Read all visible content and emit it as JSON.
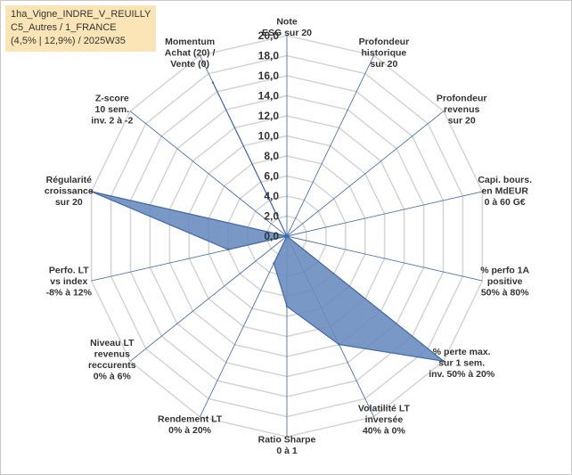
{
  "header": {
    "line1": "1ha_Vigne_INDRE_V_REUILLY",
    "line2": "C5_Autres / 1_FRANCE",
    "line3": "(4,5% | 12,9%) / 2025W35"
  },
  "chart_data": {
    "type": "radar",
    "rlim": [
      0,
      20
    ],
    "tick_labels": [
      "0,0",
      "2,0",
      "4,0",
      "6,0",
      "8,0",
      "10,0",
      "12,0",
      "14,0",
      "16,0",
      "18,0",
      "20,0"
    ],
    "grid": true,
    "colors": {
      "fill": "#6a8dbf",
      "stroke": "#3f69a8",
      "grid": "#d6d6d6",
      "spoke": "#4a72b0"
    },
    "axes": [
      {
        "label": [
          "Note",
          "ESG sur 20"
        ]
      },
      {
        "label": [
          "Profondeur",
          "historique",
          "sur 20"
        ]
      },
      {
        "label": [
          "Profondeur",
          "revenus",
          "sur 20"
        ]
      },
      {
        "label": [
          "Capi. bours.",
          "en MdEUR",
          "0 à 60 G€"
        ]
      },
      {
        "label": [
          "% perfo 1A",
          "positive",
          "50% à 80%"
        ]
      },
      {
        "label": [
          "% perte max.",
          "sur 1 sem.",
          "inv. 50% à 20%"
        ]
      },
      {
        "label": [
          "Volatilité LT",
          "inversée",
          "40% à 0%"
        ]
      },
      {
        "label": [
          "Ratio Sharpe",
          "0 à 1"
        ]
      },
      {
        "label": [
          "Rendement LT",
          "0% à 20%"
        ]
      },
      {
        "label": [
          "Niveau LT",
          "revenus",
          "reccurents",
          "0% à 6%"
        ]
      },
      {
        "label": [
          "Perfo. LT",
          "vs index",
          "-8% à 12%"
        ]
      },
      {
        "label": [
          "Régularité",
          "croissance",
          "sur 20"
        ]
      },
      {
        "label": [
          "Z-score",
          "10 sem.",
          "inv. 2 à -2"
        ]
      },
      {
        "label": [
          "Momentum",
          "Achat (20) /",
          "Vente (0)"
        ]
      }
    ],
    "values": [
      0,
      0,
      0,
      0,
      0,
      20,
      12,
      7,
      3,
      0,
      6,
      20,
      0,
      17
    ]
  }
}
